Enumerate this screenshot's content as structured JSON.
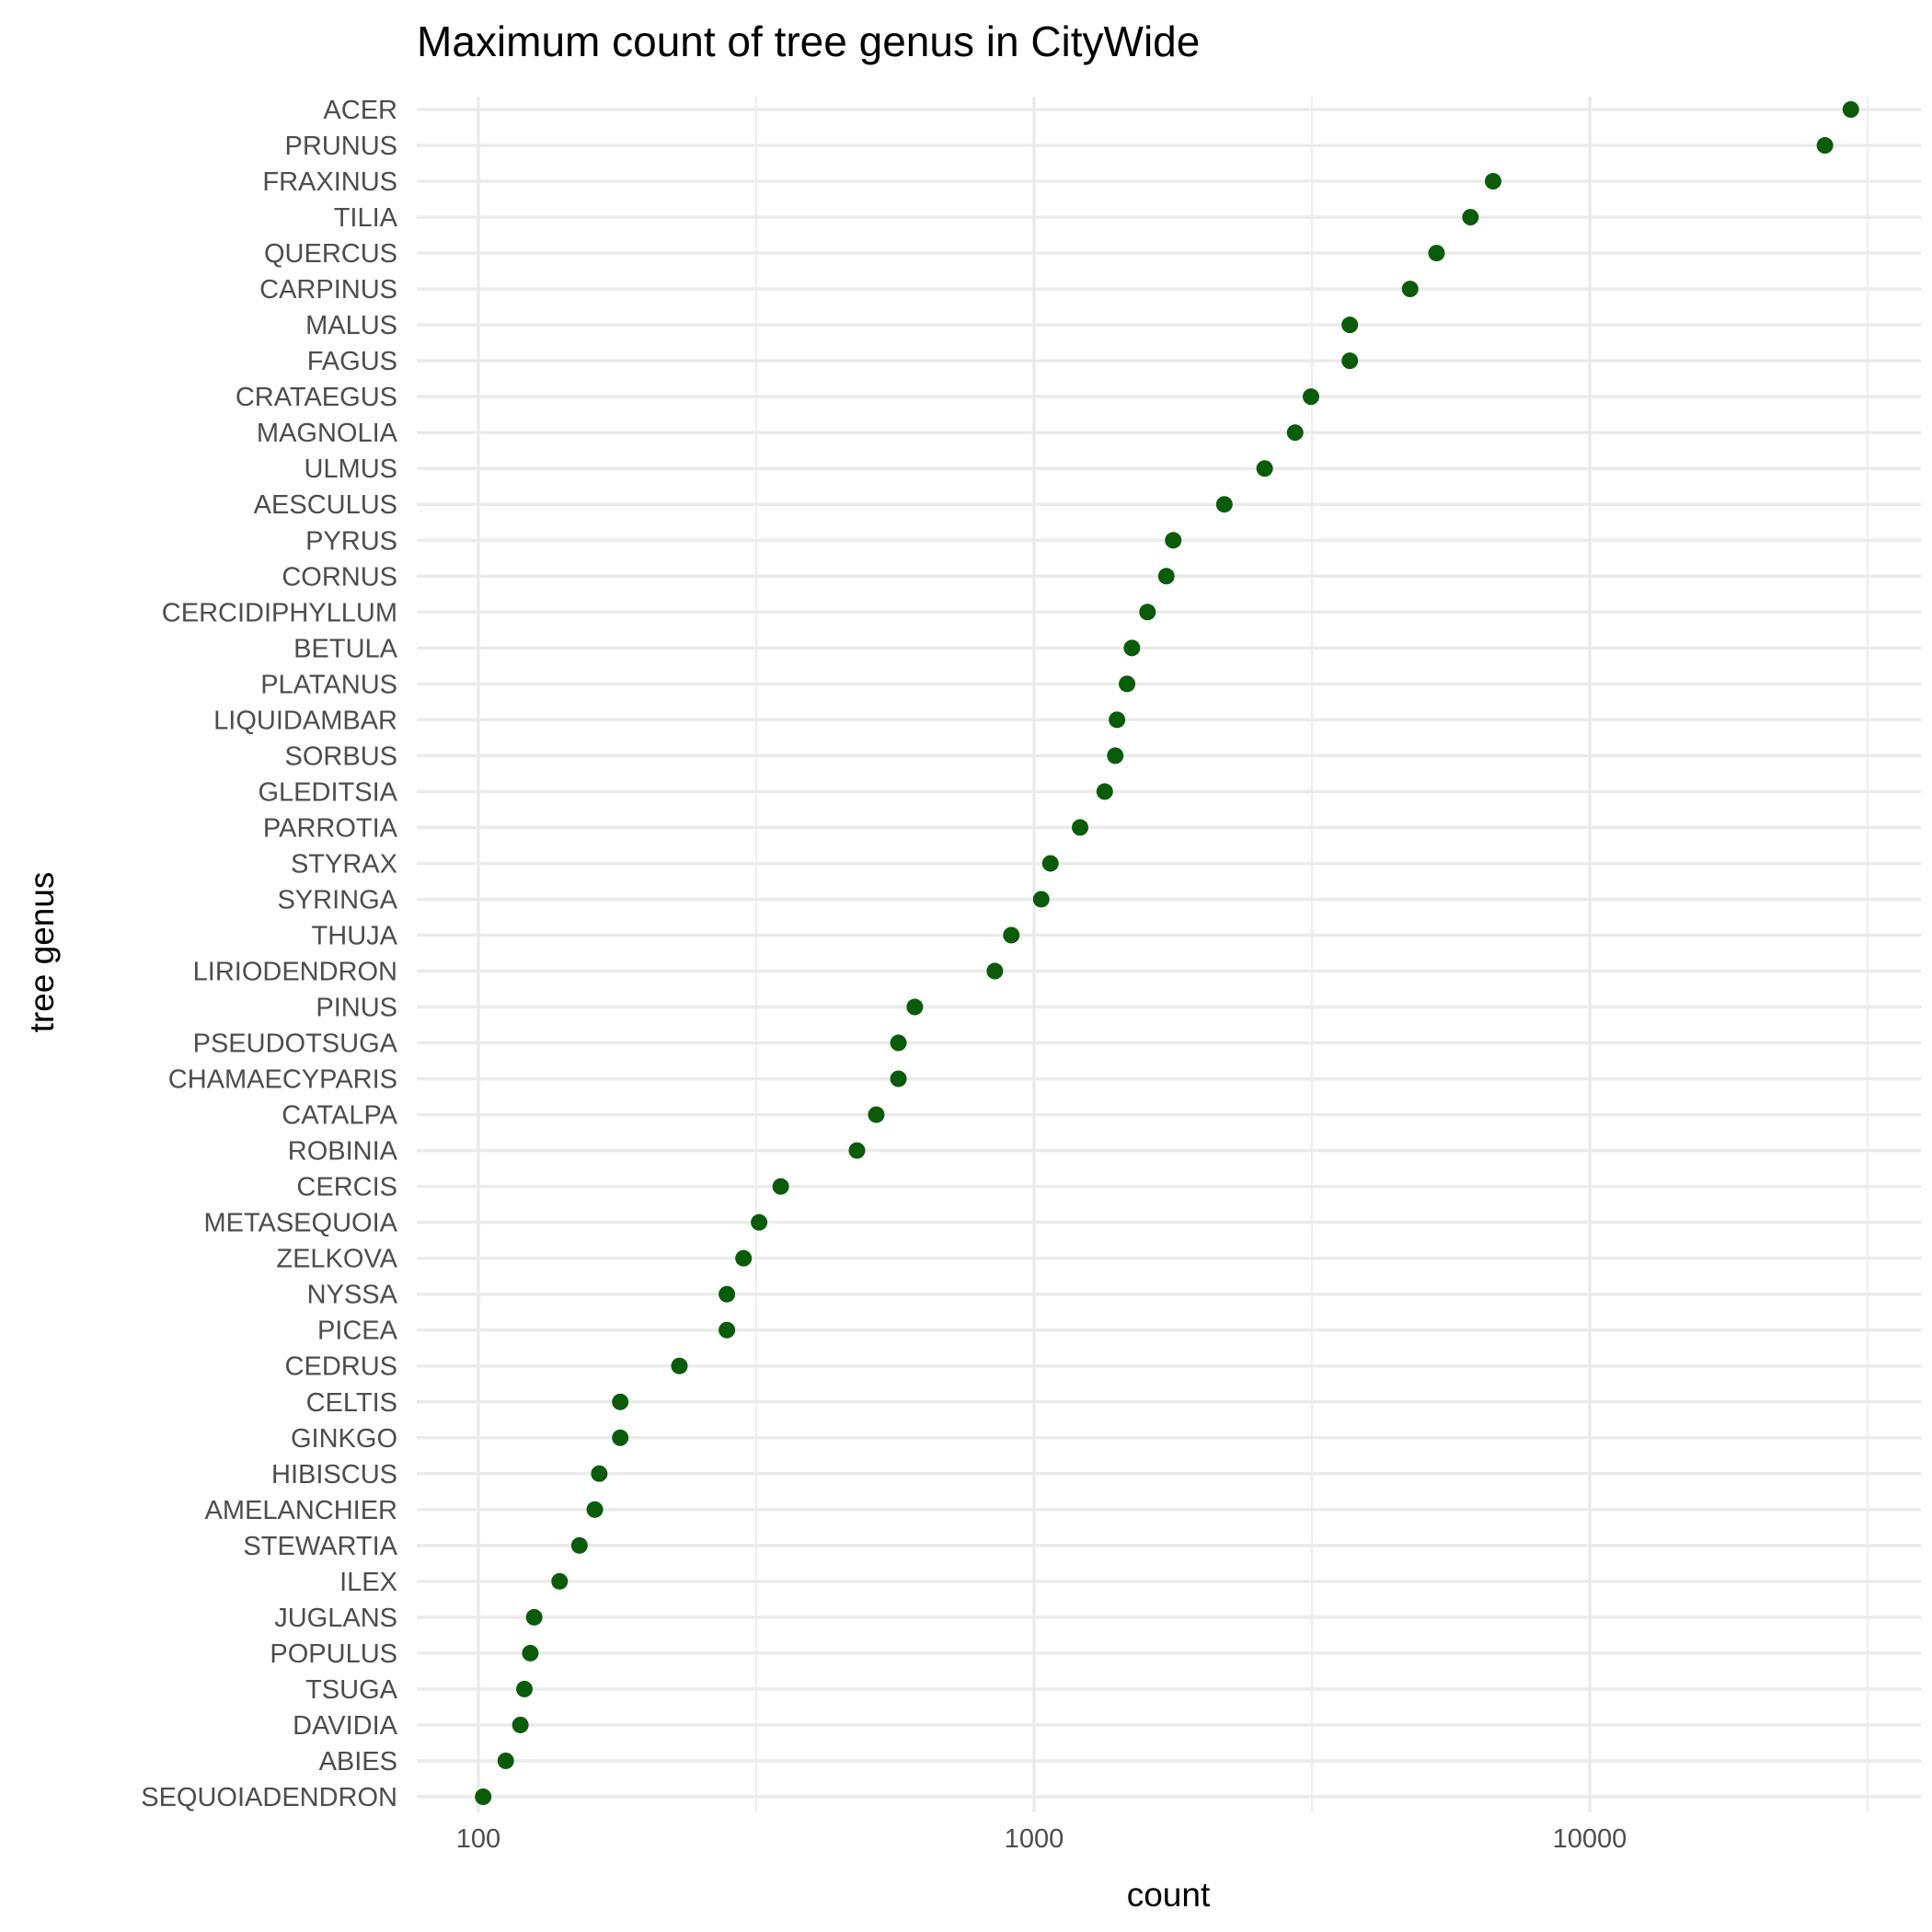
{
  "chart_data": {
    "type": "scatter",
    "title": "Maximum count of tree genus in CityWide",
    "xlabel": "count",
    "ylabel": "tree genus",
    "x_scale": "log10",
    "xlim": [
      79,
      35000
    ],
    "x_ticks": [
      100,
      1000,
      10000
    ],
    "x_tick_labels": [
      "100",
      "1000",
      "10000"
    ],
    "grid": true,
    "legend": "none",
    "point_color": "#0a5c0a",
    "categories": [
      "ACER",
      "PRUNUS",
      "FRAXINUS",
      "TILIA",
      "QUERCUS",
      "CARPINUS",
      "MALUS",
      "FAGUS",
      "CRATAEGUS",
      "MAGNOLIA",
      "ULMUS",
      "AESCULUS",
      "PYRUS",
      "CORNUS",
      "CERCIDIPHYLLUM",
      "BETULA",
      "PLATANUS",
      "LIQUIDAMBAR",
      "SORBUS",
      "GLEDITSIA",
      "PARROTIA",
      "STYRAX",
      "SYRINGA",
      "THUJA",
      "LIRIODENDRON",
      "PINUS",
      "PSEUDOTSUGA",
      "CHAMAECYPARIS",
      "CATALPA",
      "ROBINIA",
      "CERCIS",
      "METASEQUOIA",
      "ZELKOVA",
      "NYSSA",
      "PICEA",
      "CEDRUS",
      "CELTIS",
      "GINKGO",
      "HIBISCUS",
      "AMELANCHIER",
      "STEWARTIA",
      "ILEX",
      "JUGLANS",
      "POPULUS",
      "TSUGA",
      "DAVIDIA",
      "ABIES",
      "SEQUOIADENDRON"
    ],
    "values": [
      29500,
      26500,
      6700,
      6100,
      5300,
      4750,
      3700,
      3700,
      3150,
      2950,
      2600,
      2200,
      1780,
      1730,
      1600,
      1500,
      1470,
      1410,
      1400,
      1340,
      1210,
      1070,
      1030,
      910,
      850,
      610,
      570,
      570,
      520,
      480,
      350,
      320,
      300,
      280,
      280,
      230,
      180,
      180,
      165,
      162,
      152,
      140,
      126,
      124,
      121,
      119,
      112,
      102
    ]
  }
}
